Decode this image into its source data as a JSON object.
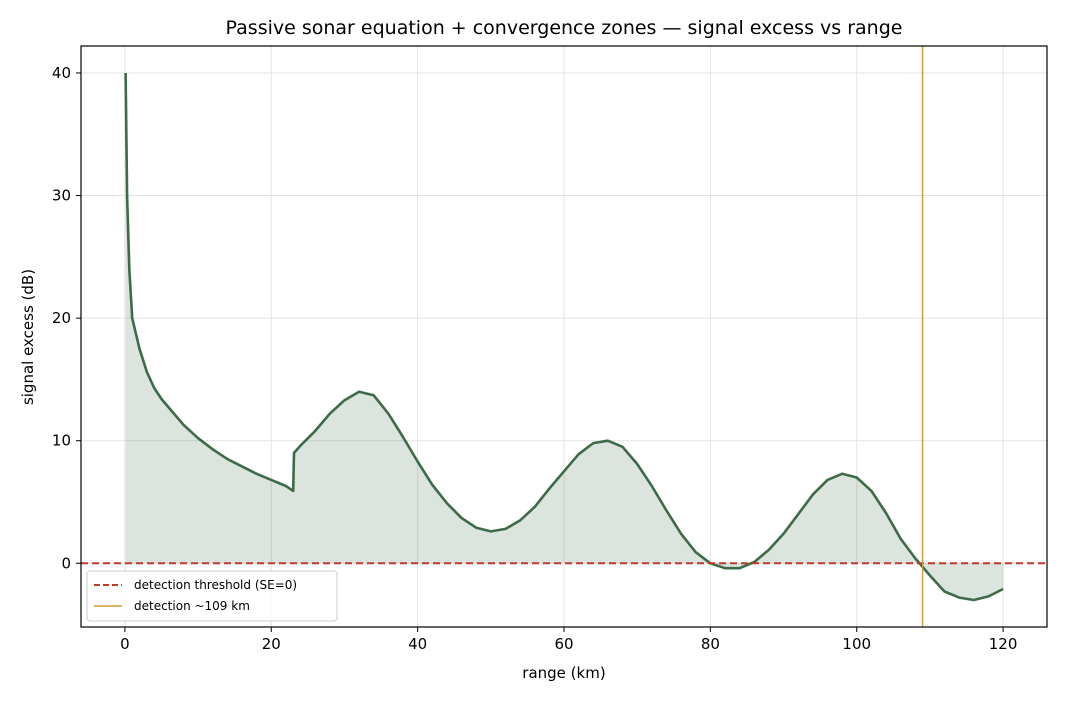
{
  "chart_data": {
    "type": "line",
    "title": "Passive sonar equation + convergence zones — signal excess vs range",
    "xlabel": "range (km)",
    "ylabel": "signal excess (dB)",
    "xlim": [
      -6,
      126
    ],
    "ylim": [
      -5.2,
      42.2
    ],
    "xticks": [
      0,
      20,
      40,
      60,
      80,
      100,
      120
    ],
    "yticks": [
      0,
      10,
      20,
      30,
      40
    ],
    "grid": true,
    "legend_position": "lower-left",
    "series": [
      {
        "color": "#3d6b47",
        "fill": true,
        "x": [
          0.1,
          0.3,
          0.6,
          1,
          2,
          3,
          4,
          5,
          6,
          8,
          10,
          12,
          14,
          16,
          18,
          20,
          22,
          23,
          23.1,
          24,
          26,
          28,
          30,
          32,
          34,
          36,
          38,
          40,
          42,
          44,
          46,
          48,
          50,
          52,
          54,
          56,
          58,
          60,
          62,
          64,
          66,
          68,
          70,
          72,
          74,
          76,
          78,
          80,
          82,
          84,
          86,
          88,
          90,
          92,
          94,
          96,
          98,
          100,
          102,
          104,
          106,
          108,
          109,
          110,
          112,
          114,
          116,
          118,
          120
        ],
        "y": [
          40,
          30,
          24,
          20,
          17.5,
          15.6,
          14.3,
          13.4,
          12.7,
          11.3,
          10.2,
          9.3,
          8.5,
          7.9,
          7.3,
          6.8,
          6.3,
          5.9,
          9.0,
          9.6,
          10.8,
          12.2,
          13.3,
          14.0,
          13.7,
          12.2,
          10.3,
          8.3,
          6.4,
          4.9,
          3.7,
          2.9,
          2.6,
          2.8,
          3.5,
          4.6,
          6.1,
          7.5,
          8.9,
          9.8,
          10.0,
          9.5,
          8.1,
          6.3,
          4.3,
          2.4,
          0.9,
          0.0,
          -0.4,
          -0.4,
          0.1,
          1.1,
          2.4,
          4.0,
          5.6,
          6.8,
          7.3,
          7.0,
          5.9,
          4.1,
          2.0,
          0.4,
          -0.3,
          -1.0,
          -2.3,
          -2.8,
          -3.0,
          -2.7,
          -2.1
        ]
      }
    ],
    "threshold": {
      "y": 0,
      "color": "#c0392b",
      "label": "detection threshold (SE=0)",
      "style": "dashed"
    },
    "detection_line": {
      "x": 109,
      "color": "#c89b3c",
      "label": "detection ~109 km"
    }
  }
}
